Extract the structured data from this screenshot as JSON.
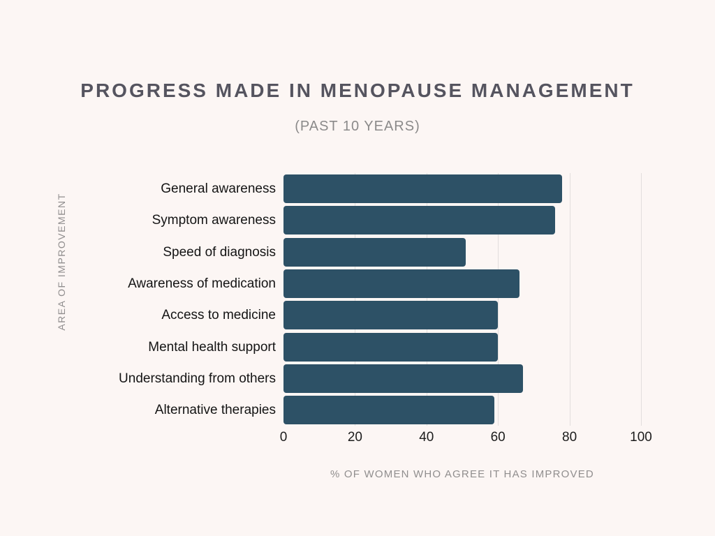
{
  "page": {
    "background": "#fcf6f4"
  },
  "header": {
    "title": "PROGRESS MADE IN MENOPAUSE MANAGEMENT",
    "subtitle": "(PAST 10 YEARS)"
  },
  "chart_data": {
    "type": "bar",
    "orientation": "horizontal",
    "title": "PROGRESS MADE IN MENOPAUSE MANAGEMENT",
    "subtitle": "(PAST 10 YEARS)",
    "categories": [
      "General awareness",
      "Symptom awareness",
      "Speed of diagnosis",
      "Awareness of medication",
      "Access to medicine",
      "Mental health support",
      "Understanding from others",
      "Alternative therapies"
    ],
    "values": [
      78,
      76,
      51,
      66,
      60,
      60,
      67,
      59
    ],
    "xlabel": "% OF WOMEN WHO AGREE IT HAS IMPROVED",
    "ylabel": "AREA OF IMPROVEMENT",
    "xlim": [
      0,
      100
    ],
    "xticks": [
      0,
      20,
      40,
      60,
      80,
      100
    ],
    "grid": true,
    "legend": false,
    "colors": {
      "bar": "#2d5166",
      "gridline": "#e2dedd",
      "title": "#55545f",
      "subtitle": "#8b8a8a",
      "category_label": "#141414",
      "tick_label": "#1c1c1c",
      "axis_title": "#908e8e",
      "background": "#fcf6f4"
    }
  }
}
